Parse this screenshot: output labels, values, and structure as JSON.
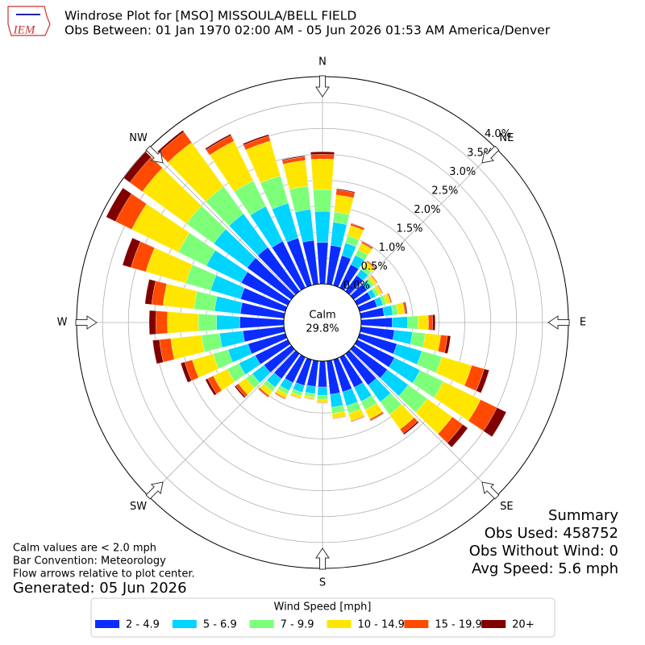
{
  "logo_text": "IEM",
  "chart_data": {
    "type": "windrose",
    "title": "Windrose Plot for [MSO] MISSOULA/BELL FIELD",
    "subtitle": "Obs Between: 01 Jan 1970 02:00 AM - 05 Jun 2026 01:53 AM America/Denver",
    "x": [
      0,
      10,
      20,
      30,
      40,
      50,
      60,
      70,
      80,
      90,
      100,
      110,
      120,
      130,
      140,
      150,
      160,
      170,
      180,
      190,
      200,
      210,
      220,
      230,
      240,
      250,
      260,
      270,
      280,
      290,
      300,
      310,
      320,
      330,
      340,
      350
    ],
    "xticks": [
      {
        "value": 0,
        "label": "N"
      },
      {
        "value": 45,
        "label": "NE"
      },
      {
        "value": 90,
        "label": "E"
      },
      {
        "value": 135,
        "label": "SE"
      },
      {
        "value": 180,
        "label": "S"
      },
      {
        "value": 225,
        "label": "SW"
      },
      {
        "value": 270,
        "label": "W"
      },
      {
        "value": 315,
        "label": "NW"
      }
    ],
    "ylim": [
      0,
      4
    ],
    "yticks": [
      {
        "value": 0,
        "label": "0.0%"
      },
      {
        "value": 0.5,
        "label": "0.5%"
      },
      {
        "value": 1,
        "label": "1.0%"
      },
      {
        "value": 1.5,
        "label": "1.5%"
      },
      {
        "value": 2,
        "label": "2.0%"
      },
      {
        "value": 2.5,
        "label": "2.5%"
      },
      {
        "value": 3,
        "label": "3.0%"
      },
      {
        "value": 3.5,
        "label": "3.5%"
      },
      {
        "value": 4,
        "label": "4.0%"
      }
    ],
    "grid": true,
    "calm": {
      "label": "Calm",
      "value": 29.8,
      "value_label": "29.8%"
    },
    "legend_title": "Wind Speed [mph]",
    "series": [
      {
        "name": "2 - 4.9",
        "color": "#0a2cff",
        "values": [
          0.8,
          0.75,
          0.6,
          0.5,
          0.38,
          0.32,
          0.3,
          0.35,
          0.45,
          0.6,
          0.65,
          0.75,
          0.8,
          0.8,
          0.75,
          0.65,
          0.65,
          0.65,
          0.5,
          0.5,
          0.52,
          0.55,
          0.6,
          0.65,
          0.7,
          0.75,
          0.8,
          0.85,
          0.85,
          0.9,
          1.0,
          1.05,
          1.05,
          1.0,
          0.95,
          0.85
        ]
      },
      {
        "name": "5 - 6.9",
        "color": "#00d4ff",
        "values": [
          0.6,
          0.45,
          0.25,
          0.2,
          0.14,
          0.1,
          0.1,
          0.12,
          0.17,
          0.3,
          0.35,
          0.5,
          0.55,
          0.5,
          0.4,
          0.3,
          0.28,
          0.25,
          0.16,
          0.14,
          0.14,
          0.17,
          0.2,
          0.28,
          0.35,
          0.4,
          0.45,
          0.45,
          0.5,
          0.6,
          0.75,
          0.8,
          0.8,
          0.75,
          0.7,
          0.6
        ]
      },
      {
        "name": "7 - 9.9",
        "color": "#7dff7a",
        "values": [
          0.42,
          0.2,
          0.15,
          0.12,
          0.08,
          0.06,
          0.06,
          0.07,
          0.1,
          0.2,
          0.25,
          0.4,
          0.5,
          0.45,
          0.3,
          0.18,
          0.15,
          0.12,
          0.08,
          0.06,
          0.07,
          0.08,
          0.1,
          0.15,
          0.25,
          0.3,
          0.35,
          0.35,
          0.4,
          0.5,
          0.6,
          0.65,
          0.65,
          0.55,
          0.55,
          0.45
        ]
      },
      {
        "name": "10 - 14.9",
        "color": "#ffe600",
        "values": [
          0.59,
          0.33,
          0.2,
          0.14,
          0.1,
          0.07,
          0.07,
          0.08,
          0.13,
          0.2,
          0.3,
          0.6,
          0.8,
          0.6,
          0.35,
          0.2,
          0.15,
          0.09,
          0.06,
          0.04,
          0.05,
          0.08,
          0.1,
          0.18,
          0.3,
          0.42,
          0.6,
          0.6,
          0.6,
          0.8,
          1.0,
          1.05,
          1.05,
          0.85,
          0.7,
          0.5
        ]
      },
      {
        "name": "15 - 19.9",
        "color": "#ff4a00",
        "values": [
          0.09,
          0.1,
          0.04,
          0.03,
          0.02,
          0.01,
          0.01,
          0.02,
          0.03,
          0.08,
          0.13,
          0.25,
          0.35,
          0.25,
          0.1,
          0.03,
          0.015,
          0.01,
          0.01,
          0.01,
          0.01,
          0.02,
          0.03,
          0.06,
          0.12,
          0.15,
          0.22,
          0.22,
          0.22,
          0.3,
          0.35,
          0.3,
          0.25,
          0.12,
          0.1,
          0.07
        ]
      },
      {
        "name": "20+",
        "color": "#800000",
        "values": [
          0.05,
          0.02,
          0.01,
          0.01,
          0.01,
          0.01,
          0.01,
          0.01,
          0.02,
          0.05,
          0.06,
          0.1,
          0.2,
          0.12,
          0.03,
          0.01,
          0.005,
          0.005,
          0.004,
          0.003,
          0.003,
          0.005,
          0.01,
          0.03,
          0.05,
          0.08,
          0.13,
          0.13,
          0.13,
          0.17,
          0.2,
          0.15,
          0.04,
          0.03,
          0.03,
          0.02
        ]
      }
    ]
  },
  "notes": [
    "Calm values are < 2.0 mph",
    "Bar Convention: Meteorology",
    "Flow arrows relative to plot center."
  ],
  "generated": "Generated: 05 Jun 2026",
  "summary": [
    "Summary",
    "Obs Used: 458752",
    "Obs Without Wind: 0",
    "Avg Speed: 5.6 mph"
  ]
}
